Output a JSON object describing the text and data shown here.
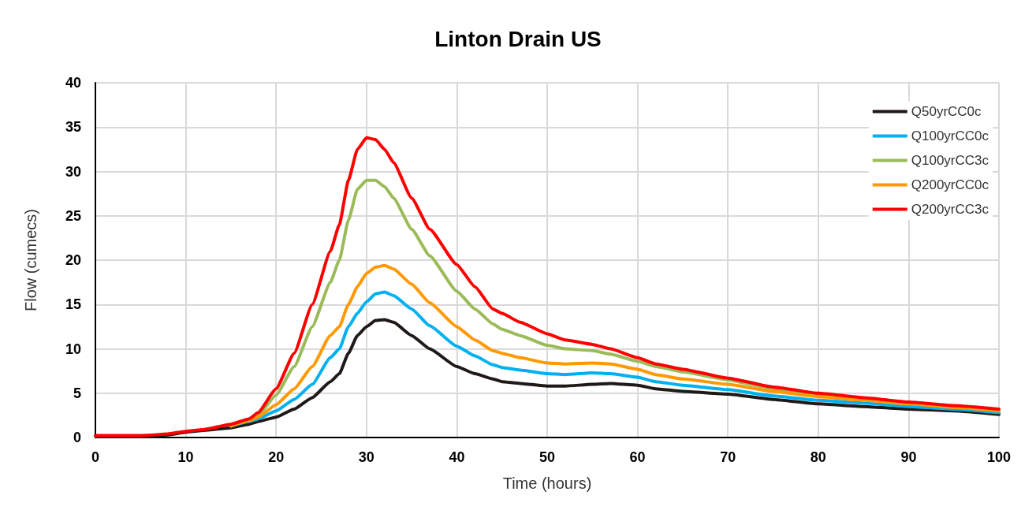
{
  "chart_data": {
    "type": "line",
    "title": "Linton Drain US",
    "xlabel": "Time (hours)",
    "ylabel": "Flow (cumecs)",
    "x": [
      0,
      5,
      8,
      10,
      12,
      15,
      17,
      18,
      20,
      22,
      24,
      26,
      27,
      28,
      29,
      30,
      31,
      32,
      33,
      35,
      37,
      40,
      42,
      44,
      45,
      47,
      50,
      52,
      55,
      57,
      60,
      62,
      65,
      70,
      75,
      80,
      85,
      90,
      95,
      100
    ],
    "series": [
      {
        "name": "Q50yrCC0c",
        "color": "#1f1a17",
        "values": [
          0.2,
          0.2,
          0.3,
          0.6,
          0.8,
          1.1,
          1.5,
          1.8,
          2.3,
          3.2,
          4.5,
          6.3,
          7.2,
          9.5,
          11.5,
          12.5,
          13.2,
          13.3,
          13,
          11.5,
          10,
          8,
          7.2,
          6.6,
          6.3,
          6.1,
          5.8,
          5.8,
          6,
          6.1,
          5.9,
          5.5,
          5.2,
          4.9,
          4.3,
          3.8,
          3.5,
          3.2,
          3,
          2.6
        ]
      },
      {
        "name": "Q100yrCC0c",
        "color": "#00b0f0",
        "values": [
          null,
          null,
          null,
          null,
          null,
          1.3,
          1.8,
          2.1,
          3,
          4.3,
          6,
          9,
          10,
          12.5,
          14,
          15.3,
          16.2,
          16.4,
          16,
          14.5,
          12.6,
          10.3,
          9.2,
          8.2,
          7.9,
          7.6,
          7.2,
          7.1,
          7.3,
          7.2,
          6.8,
          6.3,
          5.9,
          5.4,
          4.7,
          4.2,
          3.9,
          3.5,
          3.2,
          2.8
        ]
      },
      {
        "name": "Q100yrCC3c",
        "color": "#9bbb59",
        "values": [
          null,
          null,
          null,
          null,
          null,
          1.3,
          2,
          2.5,
          4.8,
          8,
          12.5,
          17.5,
          20,
          24.5,
          28,
          29,
          29,
          28.3,
          27,
          23.5,
          20.5,
          16.5,
          14.5,
          12.8,
          12.2,
          11.5,
          10.4,
          10,
          9.8,
          9.4,
          8.6,
          8,
          7.4,
          6.5,
          5.5,
          4.8,
          4.3,
          3.9,
          3.5,
          3.1
        ]
      },
      {
        "name": "Q200yrCC0c",
        "color": "#ff9900",
        "values": [
          null,
          null,
          null,
          null,
          null,
          1.3,
          1.9,
          2.3,
          3.7,
          5.5,
          8,
          11.5,
          12.5,
          15,
          17,
          18.5,
          19.2,
          19.4,
          19,
          17.3,
          15.2,
          12.5,
          11,
          9.8,
          9.5,
          9,
          8.4,
          8.3,
          8.4,
          8.3,
          7.7,
          7.1,
          6.6,
          6,
          5.2,
          4.6,
          4.2,
          3.8,
          3.4,
          3
        ]
      },
      {
        "name": "Q200yrCC3c",
        "color": "#ff0000",
        "values": [
          0.2,
          0.2,
          0.4,
          0.7,
          0.9,
          1.5,
          2.1,
          2.8,
          5.5,
          9.5,
          15,
          21,
          24,
          29,
          32.5,
          33.8,
          33.6,
          32.5,
          31,
          27,
          23.5,
          19.5,
          17,
          14.5,
          14,
          13,
          11.7,
          11,
          10.5,
          10,
          9,
          8.3,
          7.7,
          6.7,
          5.7,
          5,
          4.5,
          4,
          3.6,
          3.2
        ]
      }
    ],
    "xlim": [
      0,
      100
    ],
    "xticks": [
      0,
      10,
      20,
      30,
      40,
      50,
      60,
      70,
      80,
      90,
      100
    ],
    "ylim": [
      0,
      40
    ],
    "yticks": [
      0,
      5,
      10,
      15,
      20,
      25,
      30,
      35,
      40
    ],
    "grid": true,
    "legend": "top right",
    "marker": "none",
    "line_style": "solid"
  }
}
